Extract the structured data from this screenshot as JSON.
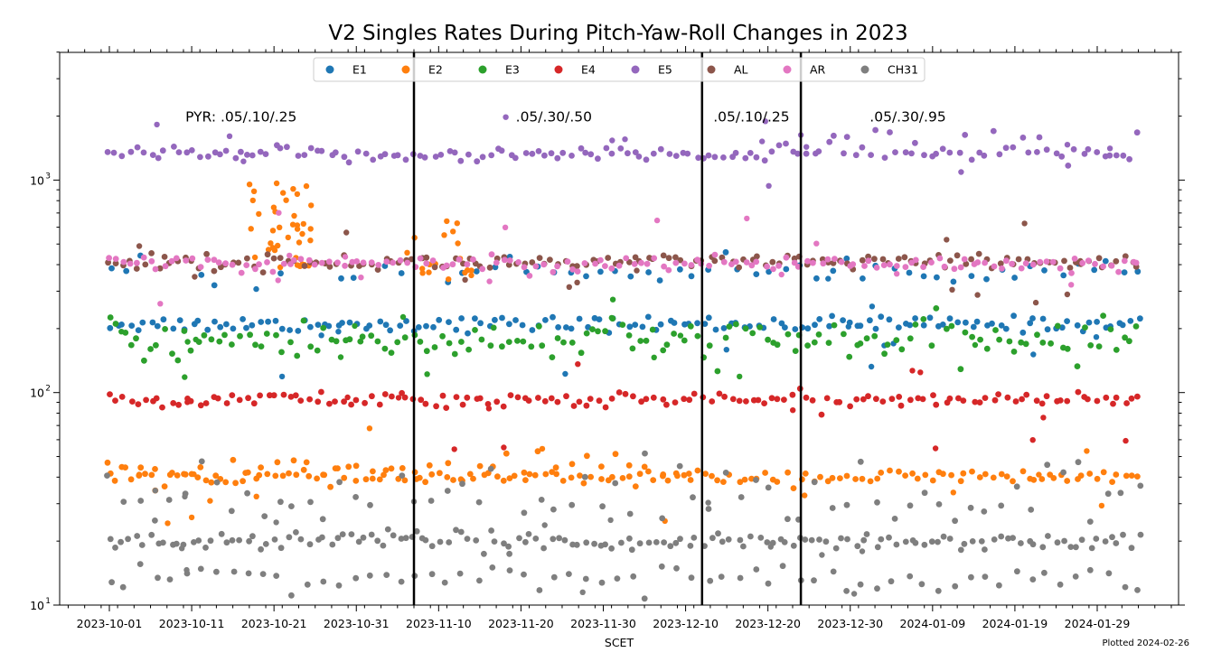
{
  "chart_data": {
    "type": "scatter",
    "title": "V2 Singles Rates During Pitch-Yaw-Roll Changes in 2023",
    "xlabel": "SCET",
    "ylabel": "",
    "yscale": "log",
    "ylim": [
      10,
      4000
    ],
    "xlim": [
      "2023-09-24",
      "2024-02-07"
    ],
    "x_ticks": [
      "2023-10-01",
      "2023-10-11",
      "2023-10-21",
      "2023-10-31",
      "2023-11-10",
      "2023-11-20",
      "2023-11-30",
      "2023-12-10",
      "2023-12-20",
      "2023-12-30",
      "2024-01-09",
      "2024-01-19",
      "2024-01-29"
    ],
    "y_ticks": [
      {
        "value": 10,
        "label_base": "10",
        "label_exp": "1"
      },
      {
        "value": 100,
        "label_base": "10",
        "label_exp": "2"
      },
      {
        "value": 1000,
        "label_base": "10",
        "label_exp": "3"
      }
    ],
    "footnote": "Plotted 2024-02-26",
    "grid": false,
    "legend_position": "top-center",
    "data_start": "2023-10-01",
    "data_end": "2024-02-03",
    "series": [
      {
        "name": "E1",
        "color": "#1f77b4",
        "levels": [
          210,
          375
        ],
        "typical": 215
      },
      {
        "name": "E2",
        "color": "#ff7f0e",
        "levels": [
          40,
          44
        ],
        "typical": 40
      },
      {
        "name": "E3",
        "color": "#2ca02c",
        "levels": [
          175
        ],
        "typical": 175
      },
      {
        "name": "E4",
        "color": "#d62728",
        "levels": [
          93
        ],
        "typical": 93
      },
      {
        "name": "E5",
        "color": "#9467bd",
        "levels": [
          1320
        ],
        "typical": 1320
      },
      {
        "name": "AL",
        "color": "#8c564b",
        "levels": [
          410
        ],
        "typical": 410
      },
      {
        "name": "AR",
        "color": "#e377c2",
        "levels": [
          405
        ],
        "typical": 405
      },
      {
        "name": "CH31",
        "color": "#7f7f7f",
        "levels": [
          20,
          13.5,
          32
        ],
        "typical": 20
      }
    ],
    "vertical_lines": [
      "2023-11-07",
      "2023-12-12",
      "2023-12-24"
    ],
    "annotations": [
      {
        "text": "PYR: .05/.10/.25",
        "x": "2023-10-17",
        "y": 2000
      },
      {
        "text": ".05/.30/.50",
        "x": "2023-11-24",
        "y": 2000
      },
      {
        "text": ".05/.10/.25",
        "x": "2023-12-18",
        "y": 2000
      },
      {
        "text": ".05/.30/.95",
        "x": "2024-01-06",
        "y": 2000
      }
    ]
  }
}
